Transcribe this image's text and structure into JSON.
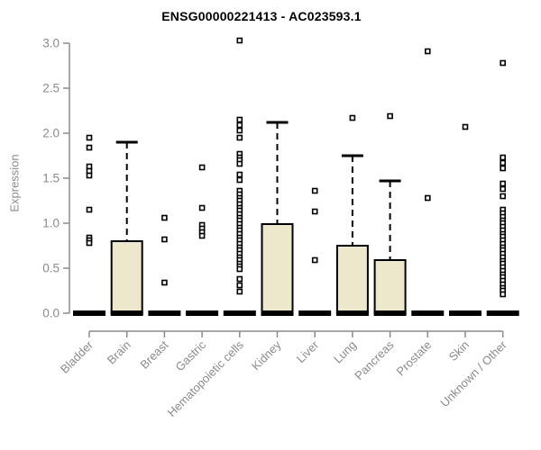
{
  "chart_data": {
    "type": "boxplot",
    "title": "ENSG00000221413 - AC023593.1",
    "ylabel": "Expression",
    "xlabel": "",
    "ylim": [
      0.0,
      3.0
    ],
    "yticks": [
      "0.0",
      "0.5",
      "1.0",
      "1.5",
      "2.0",
      "2.5",
      "3.0"
    ],
    "grid": "off",
    "legend": "none",
    "box_fill_color": "#ede8cb",
    "box_border_color": "#000000",
    "median_color": "#000000",
    "axis_color": "#8b8b8b",
    "categories": [
      "Bladder",
      "Brain",
      "Breast",
      "Gastric",
      "Hematopoietic cells",
      "Kidney",
      "Liver",
      "Lung",
      "Pancreas",
      "Prostate",
      "Skin",
      "Unknown / Other"
    ],
    "series": [
      {
        "category": "Bladder",
        "median": 0,
        "q1": 0,
        "q3": 0,
        "whisker_low": 0,
        "whisker_high": 0,
        "outliers": [
          1.95,
          1.84,
          1.63,
          1.58,
          1.53,
          1.15,
          0.84,
          0.81,
          0.78
        ]
      },
      {
        "category": "Brain",
        "median": 0,
        "q1": 0,
        "q3": 0.8,
        "whisker_low": 0,
        "whisker_high": 1.9,
        "outliers": []
      },
      {
        "category": "Breast",
        "median": 0,
        "q1": 0,
        "q3": 0,
        "whisker_low": 0,
        "whisker_high": 0,
        "outliers": [
          1.06,
          0.82,
          0.34
        ]
      },
      {
        "category": "Gastric",
        "median": 0,
        "q1": 0,
        "q3": 0,
        "whisker_low": 0,
        "whisker_high": 0,
        "outliers": [
          1.62,
          1.17,
          0.98,
          0.94,
          0.9,
          0.86
        ]
      },
      {
        "category": "Hematopoietic cells",
        "median": 0,
        "q1": 0,
        "q3": 0,
        "whisker_low": 0,
        "whisker_high": 0,
        "outliers": [
          3.03,
          2.15,
          2.09,
          2.03,
          1.95,
          1.77,
          1.73,
          1.7,
          1.66,
          1.54,
          1.48,
          1.36,
          1.32,
          1.28,
          1.25,
          1.21,
          1.17,
          1.14,
          1.1,
          1.06,
          1.03,
          0.99,
          0.95,
          0.92,
          0.88,
          0.84,
          0.81,
          0.77,
          0.73,
          0.7,
          0.66,
          0.62,
          0.59,
          0.55,
          0.52,
          0.49,
          0.38,
          0.31,
          0.24
        ]
      },
      {
        "category": "Kidney",
        "median": 0,
        "q1": 0,
        "q3": 0.99,
        "whisker_low": 0,
        "whisker_high": 2.12,
        "outliers": []
      },
      {
        "category": "Liver",
        "median": 0,
        "q1": 0,
        "q3": 0,
        "whisker_low": 0,
        "whisker_high": 0,
        "outliers": [
          1.36,
          1.13,
          0.59
        ]
      },
      {
        "category": "Lung",
        "median": 0,
        "q1": 0,
        "q3": 0.75,
        "whisker_low": 0,
        "whisker_high": 1.75,
        "outliers": [
          2.17
        ]
      },
      {
        "category": "Pancreas",
        "median": 0,
        "q1": 0,
        "q3": 0.59,
        "whisker_low": 0,
        "whisker_high": 1.47,
        "outliers": [
          2.19
        ]
      },
      {
        "category": "Prostate",
        "median": 0,
        "q1": 0,
        "q3": 0,
        "whisker_low": 0,
        "whisker_high": 0,
        "outliers": [
          2.91,
          1.28
        ]
      },
      {
        "category": "Skin",
        "median": 0,
        "q1": 0,
        "q3": 0,
        "whisker_low": 0,
        "whisker_high": 0,
        "outliers": [
          2.07
        ]
      },
      {
        "category": "Unknown / Other",
        "median": 0,
        "q1": 0,
        "q3": 0,
        "whisker_low": 0,
        "whisker_high": 0,
        "outliers": [
          2.78,
          1.73,
          1.67,
          1.61,
          1.44,
          1.38,
          1.3,
          1.15,
          1.11,
          1.07,
          1.03,
          1.0,
          0.96,
          0.92,
          0.88,
          0.85,
          0.81,
          0.77,
          0.73,
          0.7,
          0.66,
          0.62,
          0.58,
          0.55,
          0.51,
          0.47,
          0.43,
          0.4,
          0.36,
          0.32,
          0.28,
          0.25,
          0.21
        ]
      }
    ]
  }
}
